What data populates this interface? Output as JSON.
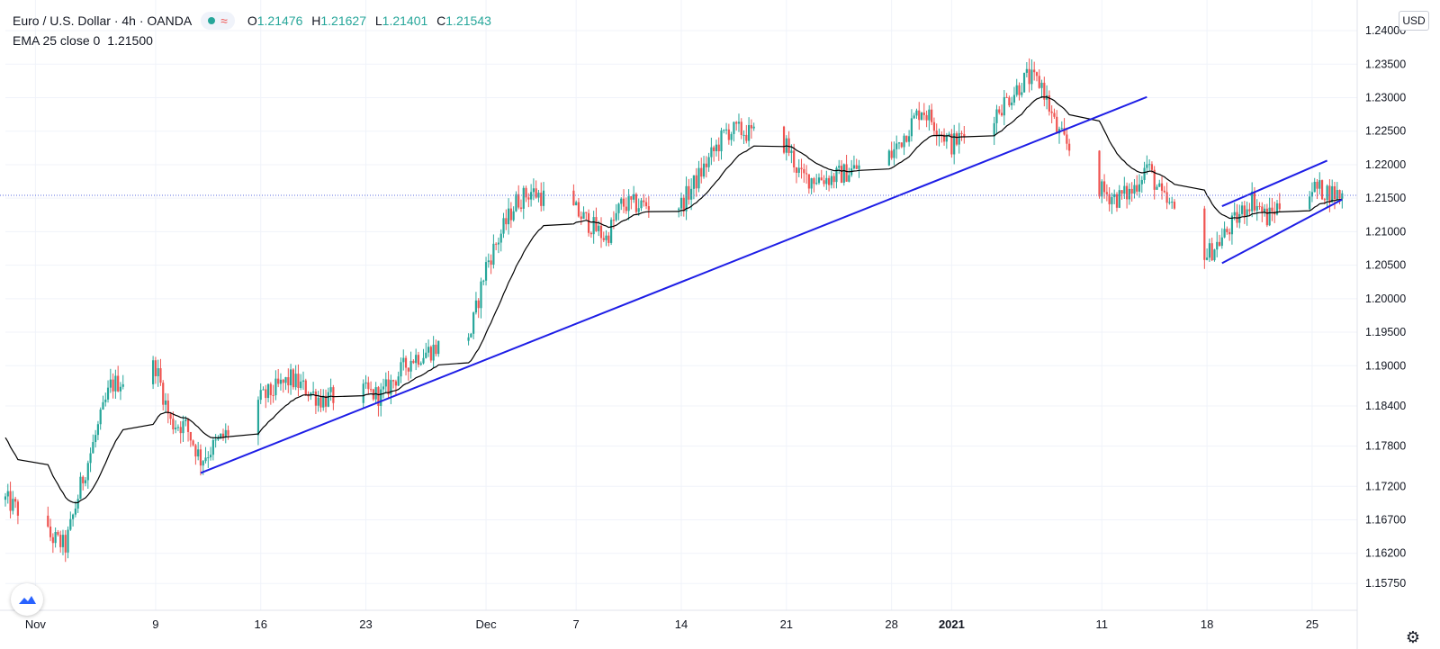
{
  "header": {
    "symbol": "Euro / U.S. Dollar · 4h · OANDA",
    "ohlc": {
      "o_label": "O",
      "o": "1.21476",
      "h_label": "H",
      "h": "1.21627",
      "l_label": "L",
      "l": "1.21401",
      "c_label": "C",
      "c": "1.21543"
    },
    "indicator": {
      "label": "EMA 25 close 0",
      "value": "1.21500"
    }
  },
  "currency_label": "USD",
  "colors": {
    "up": "#26a69a",
    "down": "#ef5350",
    "trendline": "#1e1ee6",
    "ema": "#000000",
    "grid": "#f0f3fa",
    "price_line": "#5b6ee1"
  },
  "chart_data": {
    "type": "candlestick",
    "x_axis": {
      "type": "date",
      "range": [
        "2020-10-30",
        "2021-01-28"
      ],
      "ticks": [
        {
          "date": "2020-11-01",
          "label": "Nov"
        },
        {
          "date": "2020-11-09",
          "label": "9"
        },
        {
          "date": "2020-11-16",
          "label": "16"
        },
        {
          "date": "2020-11-23",
          "label": "23"
        },
        {
          "date": "2020-12-01",
          "label": "Dec"
        },
        {
          "date": "2020-12-07",
          "label": "7"
        },
        {
          "date": "2020-12-14",
          "label": "14"
        },
        {
          "date": "2020-12-21",
          "label": "21"
        },
        {
          "date": "2020-12-28",
          "label": "28"
        },
        {
          "date": "2021-01-01",
          "label": "2021"
        },
        {
          "date": "2021-01-11",
          "label": "11"
        },
        {
          "date": "2021-01-18",
          "label": "18"
        },
        {
          "date": "2021-01-25",
          "label": "25"
        }
      ]
    },
    "y_axis": {
      "range": [
        1.1535,
        1.2435
      ],
      "position": "right",
      "tick_labels": [
        "1.24000",
        "1.23500",
        "1.23000",
        "1.22500",
        "1.22000",
        "1.21500",
        "1.21000",
        "1.20500",
        "1.20000",
        "1.19500",
        "1.19000",
        "1.18400",
        "1.17800",
        "1.17200",
        "1.16700",
        "1.16200",
        "1.15750"
      ]
    },
    "grid": true,
    "current_price": 1.21543,
    "price_key_points": [
      [
        "2020-10-30",
        1.17
      ],
      [
        "2020-11-02",
        1.1645
      ],
      [
        "2020-11-03",
        1.163
      ],
      [
        "2020-11-04",
        1.172
      ],
      [
        "2020-11-06",
        1.187
      ],
      [
        "2020-11-09",
        1.19
      ],
      [
        "2020-11-10",
        1.1815
      ],
      [
        "2020-11-11",
        1.181
      ],
      [
        "2020-11-12",
        1.176
      ],
      [
        "2020-11-16",
        1.185
      ],
      [
        "2020-11-18",
        1.188
      ],
      [
        "2020-11-20",
        1.185
      ],
      [
        "2020-11-23",
        1.186
      ],
      [
        "2020-11-24",
        1.1855
      ],
      [
        "2020-11-26",
        1.191
      ],
      [
        "2020-11-30",
        1.195
      ],
      [
        "2020-12-01",
        1.205
      ],
      [
        "2020-12-03",
        1.2145
      ],
      [
        "2020-12-04",
        1.216
      ],
      [
        "2020-12-07",
        1.213
      ],
      [
        "2020-12-09",
        1.209
      ],
      [
        "2020-12-10",
        1.214
      ],
      [
        "2020-12-14",
        1.214
      ],
      [
        "2020-12-17",
        1.225
      ],
      [
        "2020-12-18",
        1.225
      ],
      [
        "2020-12-21",
        1.223
      ],
      [
        "2020-12-22",
        1.218
      ],
      [
        "2020-12-24",
        1.218
      ],
      [
        "2020-12-28",
        1.2215
      ],
      [
        "2020-12-30",
        1.2285
      ],
      [
        "2021-01-01",
        1.223
      ],
      [
        "2021-01-04",
        1.228
      ],
      [
        "2021-01-06",
        1.233
      ],
      [
        "2021-01-07",
        1.232
      ],
      [
        "2021-01-08",
        1.225
      ],
      [
        "2021-01-11",
        1.216
      ],
      [
        "2021-01-12",
        1.215
      ],
      [
        "2021-01-13",
        1.216
      ],
      [
        "2021-01-14",
        1.22
      ],
      [
        "2021-01-15",
        1.215
      ],
      [
        "2021-01-17",
        1.21
      ],
      [
        "2021-01-18",
        1.2065
      ],
      [
        "2021-01-19",
        1.209
      ],
      [
        "2021-01-20",
        1.212
      ],
      [
        "2021-01-21",
        1.215
      ],
      [
        "2021-01-22",
        1.212
      ],
      [
        "2021-01-24",
        1.217
      ],
      [
        "2021-01-26",
        1.216
      ],
      [
        "2021-01-27",
        1.2154
      ]
    ],
    "ema_period": 25,
    "trendlines": [
      {
        "from": [
          "2020-11-12",
          1.174
        ],
        "to": [
          "2021-01-14",
          1.2301
        ]
      },
      {
        "from": [
          "2021-01-19",
          1.2138
        ],
        "to": [
          "2021-01-26",
          1.2206
        ]
      },
      {
        "from": [
          "2021-01-19",
          1.2053
        ],
        "to": [
          "2021-01-27",
          1.2148
        ]
      }
    ]
  }
}
